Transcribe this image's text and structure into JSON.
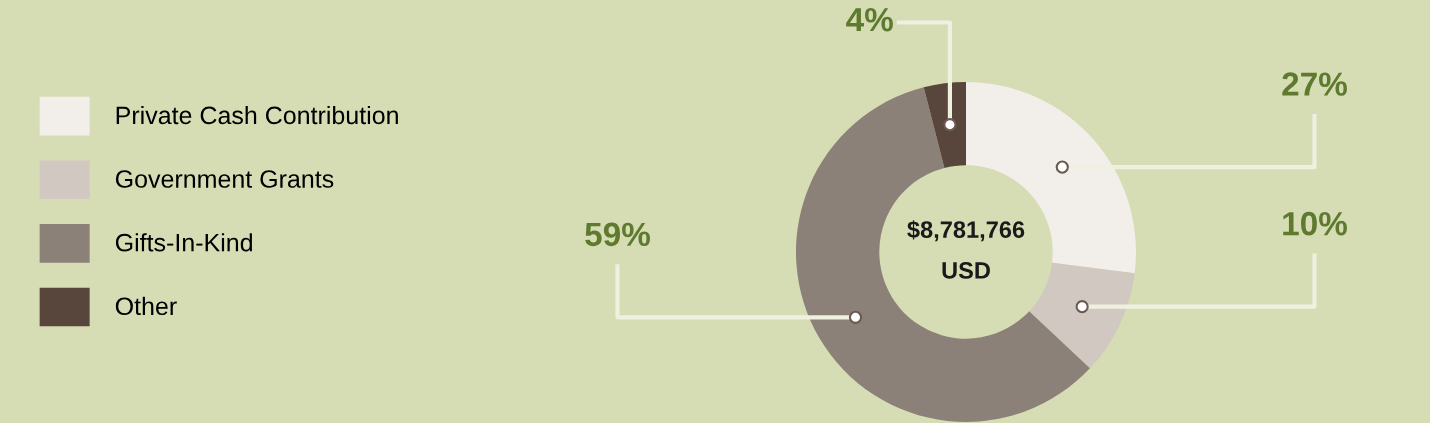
{
  "chart_data": {
    "type": "donut",
    "categories": [
      "Private Cash Contribution",
      "Government Grants",
      "Gifts-In-Kind",
      "Other"
    ],
    "values": [
      27,
      10,
      59,
      4
    ],
    "colors": [
      "#f2efeb",
      "#d1c9c1",
      "#8c8179",
      "#58463c"
    ],
    "value_labels": [
      "27%",
      "10%",
      "59%",
      "4%"
    ],
    "annotations": [
      "$8,781,766",
      "USD"
    ],
    "legend": "left"
  }
}
